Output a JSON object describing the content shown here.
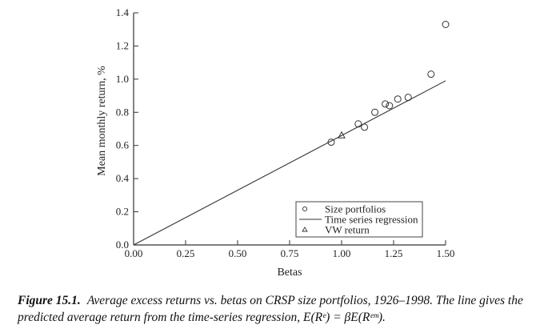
{
  "chart_data": {
    "type": "scatter",
    "xlabel": "Betas",
    "ylabel": "Mean monthly return, %",
    "xlim": [
      0.0,
      1.5
    ],
    "ylim": [
      0.0,
      1.4
    ],
    "x_ticks": [
      "0.00",
      "0.25",
      "0.50",
      "0.75",
      "1.00",
      "1.25",
      "1.50"
    ],
    "y_ticks": [
      "0.0",
      "0.2",
      "0.4",
      "0.6",
      "0.8",
      "1.0",
      "1.2",
      "1.4"
    ],
    "grid": false,
    "legend_position": "bottom-right",
    "series": [
      {
        "name": "Size portfolios",
        "marker": "circle",
        "points": [
          {
            "x": 0.95,
            "y": 0.62
          },
          {
            "x": 1.08,
            "y": 0.73
          },
          {
            "x": 1.11,
            "y": 0.71
          },
          {
            "x": 1.16,
            "y": 0.8
          },
          {
            "x": 1.21,
            "y": 0.85
          },
          {
            "x": 1.23,
            "y": 0.84
          },
          {
            "x": 1.27,
            "y": 0.88
          },
          {
            "x": 1.32,
            "y": 0.89
          },
          {
            "x": 1.43,
            "y": 1.03
          },
          {
            "x": 1.5,
            "y": 1.33
          }
        ]
      },
      {
        "name": "Time series regression",
        "marker": "line",
        "points": [
          {
            "x": 0.0,
            "y": 0.0
          },
          {
            "x": 1.5,
            "y": 0.99
          }
        ]
      },
      {
        "name": "VW return",
        "marker": "triangle",
        "points": [
          {
            "x": 1.0,
            "y": 0.66
          }
        ]
      }
    ]
  },
  "caption": {
    "label": "Figure 15.1.",
    "text": "Average excess returns vs. betas on CRSP size portfolios, 1926–1998. The line gives the predicted average return from the time-series regression, E(Rᵉ) = βE(Rᵉᵐ)."
  }
}
